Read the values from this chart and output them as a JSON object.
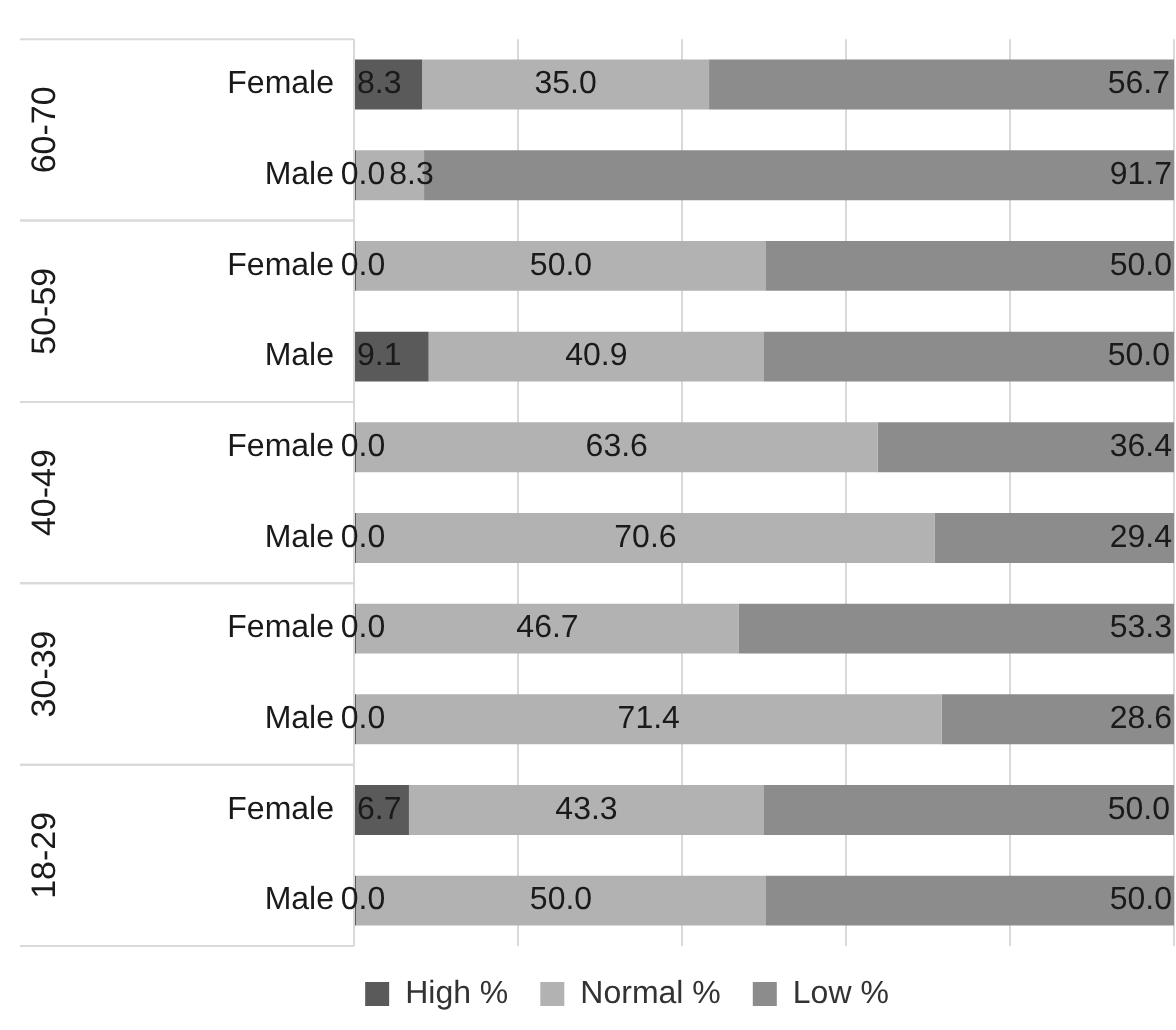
{
  "chart_data": {
    "type": "bar",
    "orientation": "horizontal",
    "stacked": true,
    "categories": [
      "Female",
      "Male",
      "Female",
      "Male",
      "Female",
      "Male",
      "Female",
      "Male",
      "Female",
      "Male"
    ],
    "annotations": [
      "60-70",
      "50-59",
      "40-49",
      "30-39",
      "18-29"
    ],
    "series": [
      {
        "name": "High %",
        "color": "#5a5a5a",
        "values": [
          8.3,
          0,
          0,
          9.1,
          0,
          0,
          0,
          0,
          6.7,
          0
        ],
        "value_labels": [
          "8.3",
          "0.0",
          "0.0",
          "9.1",
          "0.0",
          "0.0",
          "0.0",
          "0.0",
          "6.7",
          "0.0"
        ]
      },
      {
        "name": "Normal %",
        "color": "#b2b2b2",
        "values": [
          35,
          8.3,
          50,
          40.9,
          63.6,
          70.6,
          46.7,
          71.4,
          43.3,
          50
        ],
        "value_labels": [
          "35.0",
          "8.3",
          "50.0",
          "40.9",
          "63.6",
          "70.6",
          "46.7",
          "71.4",
          "43.3",
          "50.0"
        ]
      },
      {
        "name": "Low %",
        "color": "#8c8c8c",
        "values": [
          56.7,
          91.7,
          50,
          50,
          36.4,
          29.4,
          53.3,
          28.6,
          50,
          50
        ],
        "value_labels": [
          "56.7",
          "91.7",
          "50.0",
          "50.0",
          "36.4",
          "29.4",
          "53.3",
          "28.6",
          "50.0",
          "50.0"
        ]
      }
    ],
    "xlim": [
      0,
      100
    ],
    "xticks": [
      {
        "value": 0,
        "label": null
      },
      {
        "value": 20,
        "label": null
      },
      {
        "value": 40,
        "label": null
      },
      {
        "value": 60,
        "label": null
      },
      {
        "value": 80,
        "label": null
      },
      {
        "value": 100,
        "label": null
      }
    ],
    "tick_labels": "y",
    "grid": "x",
    "legend": "bottom"
  }
}
